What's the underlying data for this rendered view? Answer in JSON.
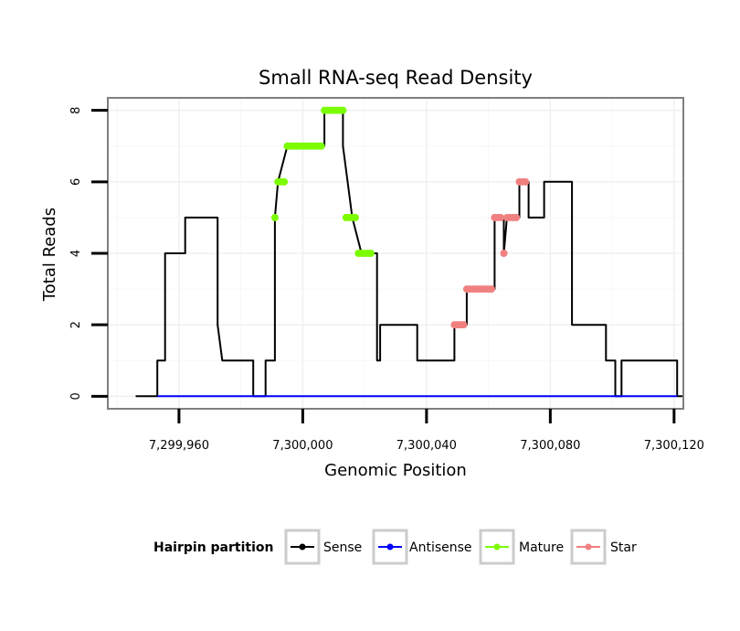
{
  "chart_data": {
    "type": "line",
    "title": "Small RNA-seq Read Density",
    "xlabel": "Genomic Position",
    "ylabel": "Total Reads",
    "xlim": [
      7299937,
      7300123
    ],
    "ylim": [
      -0.35,
      8.35
    ],
    "x_ticks": [
      7299960,
      7300000,
      7300040,
      7300080,
      7300120
    ],
    "x_tick_labels": [
      "7,299,960",
      "7,300,000",
      "7,300,040",
      "7,300,080",
      "7,300,120"
    ],
    "y_ticks": [
      0,
      2,
      4,
      6,
      8
    ],
    "y_tick_labels": [
      "0",
      "2",
      "4",
      "6",
      "8"
    ],
    "grid": true,
    "legend": {
      "title": "Hairpin partition",
      "position": "bottom",
      "entries": [
        "Sense",
        "Antisense",
        "Mature",
        "Star"
      ]
    },
    "series": [
      {
        "name": "Sense",
        "color": "#000000",
        "style": "line",
        "points": [
          [
            7299946,
            0
          ],
          [
            7299953,
            0
          ],
          [
            7299953,
            1
          ],
          [
            7299955.5,
            1
          ],
          [
            7299955.5,
            4
          ],
          [
            7299962,
            4
          ],
          [
            7299962,
            5
          ],
          [
            7299972.5,
            5
          ],
          [
            7299972.5,
            2
          ],
          [
            7299974,
            1
          ],
          [
            7299984,
            1
          ],
          [
            7299984,
            0
          ],
          [
            7299988,
            0
          ],
          [
            7299988,
            1
          ],
          [
            7299991,
            1
          ],
          [
            7299991,
            5
          ],
          [
            7299992,
            6
          ],
          [
            7299995,
            7
          ],
          [
            7300007,
            7
          ],
          [
            7300007,
            8
          ],
          [
            7300013,
            8
          ],
          [
            7300013,
            7
          ],
          [
            7300016,
            5
          ],
          [
            7300019,
            4
          ],
          [
            7300024,
            4
          ],
          [
            7300024,
            1
          ],
          [
            7300025,
            1
          ],
          [
            7300025,
            2
          ],
          [
            7300037,
            2
          ],
          [
            7300037,
            1
          ],
          [
            7300049,
            1
          ],
          [
            7300049,
            2
          ],
          [
            7300053,
            2
          ],
          [
            7300053,
            3
          ],
          [
            7300062,
            3
          ],
          [
            7300062,
            5
          ],
          [
            7300065,
            5
          ],
          [
            7300065,
            4
          ],
          [
            7300066,
            5
          ],
          [
            7300070,
            5
          ],
          [
            7300070,
            6
          ],
          [
            7300073,
            6
          ],
          [
            7300073,
            5
          ],
          [
            7300078,
            5
          ],
          [
            7300078,
            6
          ],
          [
            7300087,
            6
          ],
          [
            7300087,
            2
          ],
          [
            7300098,
            2
          ],
          [
            7300098,
            1
          ],
          [
            7300101,
            1
          ],
          [
            7300101,
            0
          ],
          [
            7300103,
            0
          ],
          [
            7300103,
            1
          ],
          [
            7300121,
            1
          ],
          [
            7300121,
            0
          ],
          [
            7300123,
            0
          ]
        ]
      },
      {
        "name": "Antisense",
        "color": "#0000ff",
        "style": "line",
        "points": [
          [
            7299953,
            0
          ],
          [
            7300121,
            0
          ]
        ]
      },
      {
        "name": "Mature",
        "color": "#7cfc00",
        "style": "point",
        "points": [
          [
            7299991,
            5
          ],
          [
            7299992,
            6
          ],
          [
            7299993,
            6
          ],
          [
            7299994,
            6
          ],
          [
            7299995,
            7
          ],
          [
            7299996,
            7
          ],
          [
            7299997,
            7
          ],
          [
            7299998,
            7
          ],
          [
            7299999,
            7
          ],
          [
            7300000,
            7
          ],
          [
            7300001,
            7
          ],
          [
            7300002,
            7
          ],
          [
            7300003,
            7
          ],
          [
            7300004,
            7
          ],
          [
            7300005,
            7
          ],
          [
            7300006,
            7
          ],
          [
            7300007,
            8
          ],
          [
            7300008,
            8
          ],
          [
            7300009,
            8
          ],
          [
            7300010,
            8
          ],
          [
            7300011,
            8
          ],
          [
            7300012,
            8
          ],
          [
            7300013,
            8
          ],
          [
            7300014,
            5
          ],
          [
            7300015,
            5
          ],
          [
            7300016,
            5
          ],
          [
            7300017,
            5
          ],
          [
            7300018,
            4
          ],
          [
            7300019,
            4
          ],
          [
            7300020,
            4
          ],
          [
            7300021,
            4
          ],
          [
            7300022,
            4
          ]
        ]
      },
      {
        "name": "Star",
        "color": "#f08080",
        "style": "point",
        "points": [
          [
            7300049,
            2
          ],
          [
            7300050,
            2
          ],
          [
            7300051,
            2
          ],
          [
            7300052,
            2
          ],
          [
            7300053,
            3
          ],
          [
            7300054,
            3
          ],
          [
            7300055,
            3
          ],
          [
            7300056,
            3
          ],
          [
            7300057,
            3
          ],
          [
            7300058,
            3
          ],
          [
            7300059,
            3
          ],
          [
            7300060,
            3
          ],
          [
            7300061,
            3
          ],
          [
            7300062,
            5
          ],
          [
            7300063,
            5
          ],
          [
            7300064,
            5
          ],
          [
            7300065,
            4
          ],
          [
            7300066,
            5
          ],
          [
            7300067,
            5
          ],
          [
            7300068,
            5
          ],
          [
            7300069,
            5
          ],
          [
            7300070,
            6
          ],
          [
            7300071,
            6
          ],
          [
            7300072,
            6
          ]
        ]
      }
    ]
  }
}
